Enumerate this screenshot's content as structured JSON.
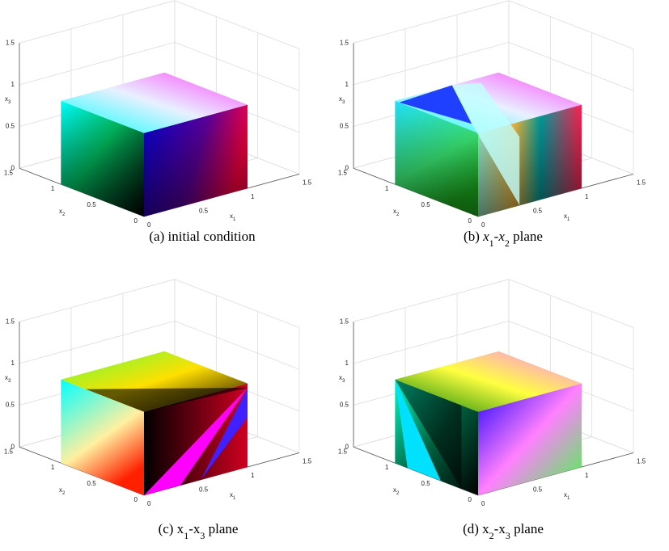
{
  "chart_data": [
    {
      "type": "cube3d",
      "caption": [
        {
          "text": "(a) initial condition"
        }
      ],
      "xlabel": {
        "base": "x",
        "sub": "1"
      },
      "ylabel": {
        "base": "x",
        "sub": "2"
      },
      "zlabel": {
        "base": "x",
        "sub": "3"
      },
      "x": [
        0,
        1
      ],
      "y": [
        0,
        1
      ],
      "z": [
        0,
        1
      ],
      "xlim": [
        0,
        1.5
      ],
      "ylim": [
        0,
        1.5
      ],
      "zlim": [
        0,
        1.5
      ],
      "xticks": [
        0,
        0.5,
        1,
        1.5
      ],
      "yticks": [
        0,
        0.5,
        1,
        1.5
      ],
      "zticks": [
        0,
        0.5,
        1,
        1.5
      ],
      "grid": true
    },
    {
      "type": "cube3d",
      "caption": [
        {
          "text": "(b) "
        },
        {
          "text": "x",
          "italic": true
        },
        {
          "text": "1",
          "sub": true
        },
        {
          "text": "-"
        },
        {
          "text": "x",
          "italic": true
        },
        {
          "text": "2",
          "sub": true
        },
        {
          "text": " plane"
        }
      ],
      "xlabel": {
        "base": "x",
        "sub": "1"
      },
      "ylabel": {
        "base": "x",
        "sub": "2"
      },
      "zlabel": {
        "base": "x",
        "sub": "3"
      },
      "x": [
        0,
        1
      ],
      "y": [
        0,
        1
      ],
      "z": [
        0,
        1
      ],
      "xlim": [
        0,
        1.5
      ],
      "ylim": [
        0,
        1.5
      ],
      "zlim": [
        0,
        1.5
      ],
      "xticks": [
        0,
        0.5,
        1,
        1.5
      ],
      "yticks": [
        0,
        0.5,
        1,
        1.5
      ],
      "zticks": [
        0,
        0.5,
        1,
        1.5
      ],
      "grid": true
    },
    {
      "type": "cube3d",
      "caption": [
        {
          "text": "(c) x"
        },
        {
          "text": "1",
          "sub": true
        },
        {
          "text": "-x"
        },
        {
          "text": "3",
          "sub": true
        },
        {
          "text": " plane"
        }
      ],
      "xlabel": {
        "base": "x",
        "sub": "1"
      },
      "ylabel": {
        "base": "x",
        "sub": "2"
      },
      "zlabel": {
        "base": "x",
        "sub": "3"
      },
      "x": [
        0,
        1
      ],
      "y": [
        0,
        1
      ],
      "z": [
        0,
        1
      ],
      "xlim": [
        0,
        1.5
      ],
      "ylim": [
        0,
        1.5
      ],
      "zlim": [
        0,
        1.5
      ],
      "xticks": [
        0,
        0.5,
        1,
        1.5
      ],
      "yticks": [
        0,
        0.5,
        1,
        1.5
      ],
      "zticks": [
        0,
        0.5,
        1,
        1.5
      ],
      "grid": true
    },
    {
      "type": "cube3d",
      "caption": [
        {
          "text": "(d) x"
        },
        {
          "text": "2",
          "sub": true
        },
        {
          "text": "-x"
        },
        {
          "text": "3",
          "sub": true
        },
        {
          "text": " plane"
        }
      ],
      "xlabel": {
        "base": "x",
        "sub": "1"
      },
      "ylabel": {
        "base": "x",
        "sub": "2"
      },
      "zlabel": {
        "base": "x",
        "sub": "3"
      },
      "x": [
        0,
        1
      ],
      "y": [
        0,
        1
      ],
      "z": [
        0,
        1
      ],
      "xlim": [
        0,
        1.5
      ],
      "ylim": [
        0,
        1.5
      ],
      "zlim": [
        0,
        1.5
      ],
      "xticks": [
        0,
        0.5,
        1,
        1.5
      ],
      "yticks": [
        0,
        0.5,
        1,
        1.5
      ],
      "zticks": [
        0,
        0.5,
        1,
        1.5
      ],
      "grid": true
    }
  ]
}
